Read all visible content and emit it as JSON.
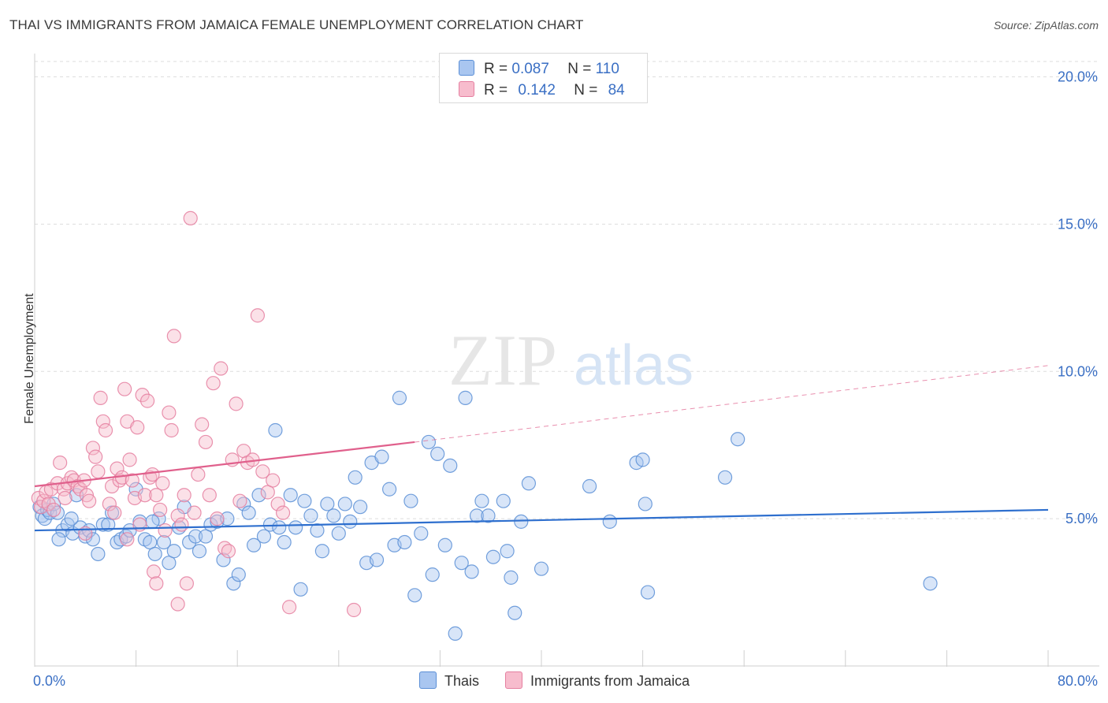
{
  "title": "THAI VS IMMIGRANTS FROM JAMAICA FEMALE UNEMPLOYMENT CORRELATION CHART",
  "source": "Source: ZipAtlas.com",
  "watermark": {
    "zip": "ZIP",
    "atlas": "atlas"
  },
  "legend": {
    "rows": [
      {
        "r_label": "R =",
        "r_value": "0.087",
        "n_label": "N =",
        "n_value": "110"
      },
      {
        "r_label": "R =",
        "r_value": "0.142",
        "n_label": "N =",
        "n_value": "84"
      }
    ]
  },
  "bottom_legend": [
    "Thais",
    "Immigrants from Jamaica"
  ],
  "colors": {
    "thais_fill": "#a9c6f0",
    "thais_stroke": "#5b8fd6",
    "thais_line": "#2e6fce",
    "jamaica_fill": "#f7bccd",
    "jamaica_stroke": "#e57fa0",
    "jamaica_line": "#e0608c",
    "axis_label": "#3a6fc4",
    "grid": "#dddddd"
  },
  "chart_data": {
    "type": "scatter",
    "title": "THAI VS IMMIGRANTS FROM JAMAICA FEMALE UNEMPLOYMENT CORRELATION CHART",
    "xlabel": "",
    "ylabel": "Female Unemployment",
    "xlim": [
      0,
      80
    ],
    "ylim": [
      0,
      20
    ],
    "x_ticks": [
      "0.0%",
      "80.0%"
    ],
    "y_ticks": [
      "5.0%",
      "10.0%",
      "15.0%",
      "20.0%"
    ],
    "y_tick_values": [
      5,
      10,
      15,
      20
    ],
    "grid": true,
    "series": [
      {
        "name": "Thais",
        "r": 0.087,
        "n": 110,
        "trend": {
          "x": [
            0,
            80
          ],
          "y": [
            4.6,
            5.3
          ],
          "dashed_x_start": null
        },
        "points": [
          [
            0.4,
            5.4
          ],
          [
            0.6,
            5.1
          ],
          [
            0.8,
            5.0
          ],
          [
            1.0,
            5.3
          ],
          [
            1.2,
            5.2
          ],
          [
            1.5,
            5.5
          ],
          [
            1.8,
            5.2
          ],
          [
            2.2,
            4.6
          ],
          [
            2.6,
            4.8
          ],
          [
            3.0,
            4.5
          ],
          [
            3.3,
            5.8
          ],
          [
            3.6,
            4.7
          ],
          [
            4.0,
            4.4
          ],
          [
            4.3,
            4.6
          ],
          [
            4.6,
            4.3
          ],
          [
            5.0,
            3.8
          ],
          [
            5.4,
            4.8
          ],
          [
            5.8,
            4.8
          ],
          [
            6.1,
            5.2
          ],
          [
            6.5,
            4.2
          ],
          [
            6.8,
            4.3
          ],
          [
            7.2,
            4.4
          ],
          [
            7.5,
            4.6
          ],
          [
            8.0,
            6.0
          ],
          [
            8.3,
            4.9
          ],
          [
            8.7,
            4.3
          ],
          [
            9.1,
            4.2
          ],
          [
            9.5,
            3.8
          ],
          [
            9.8,
            5.0
          ],
          [
            10.2,
            4.2
          ],
          [
            10.6,
            3.5
          ],
          [
            11.0,
            3.9
          ],
          [
            11.4,
            4.7
          ],
          [
            11.8,
            5.4
          ],
          [
            12.2,
            4.2
          ],
          [
            12.7,
            4.4
          ],
          [
            13.0,
            3.9
          ],
          [
            13.5,
            4.4
          ],
          [
            13.9,
            4.8
          ],
          [
            14.4,
            4.9
          ],
          [
            14.9,
            3.6
          ],
          [
            15.2,
            5.0
          ],
          [
            15.7,
            2.8
          ],
          [
            16.1,
            3.1
          ],
          [
            16.5,
            5.5
          ],
          [
            16.9,
            5.2
          ],
          [
            17.3,
            4.1
          ],
          [
            17.7,
            5.8
          ],
          [
            18.1,
            4.4
          ],
          [
            18.6,
            4.8
          ],
          [
            19.0,
            8.0
          ],
          [
            19.3,
            4.7
          ],
          [
            19.7,
            4.2
          ],
          [
            20.2,
            5.8
          ],
          [
            20.6,
            4.7
          ],
          [
            21.0,
            2.6
          ],
          [
            21.3,
            5.6
          ],
          [
            21.8,
            5.1
          ],
          [
            22.3,
            4.6
          ],
          [
            22.7,
            3.9
          ],
          [
            23.1,
            5.5
          ],
          [
            23.6,
            5.1
          ],
          [
            24.0,
            4.5
          ],
          [
            24.5,
            5.5
          ],
          [
            24.9,
            4.9
          ],
          [
            25.3,
            6.4
          ],
          [
            25.7,
            5.4
          ],
          [
            26.2,
            3.5
          ],
          [
            26.6,
            6.9
          ],
          [
            27.0,
            3.6
          ],
          [
            27.4,
            7.1
          ],
          [
            28.0,
            6.0
          ],
          [
            28.4,
            4.1
          ],
          [
            28.8,
            9.1
          ],
          [
            29.2,
            4.2
          ],
          [
            29.7,
            5.6
          ],
          [
            30.0,
            2.4
          ],
          [
            30.5,
            4.5
          ],
          [
            31.1,
            7.6
          ],
          [
            31.4,
            3.1
          ],
          [
            31.8,
            7.2
          ],
          [
            32.4,
            4.1
          ],
          [
            32.8,
            6.8
          ],
          [
            33.2,
            1.1
          ],
          [
            33.7,
            3.5
          ],
          [
            34.0,
            9.1
          ],
          [
            34.5,
            3.2
          ],
          [
            34.9,
            5.1
          ],
          [
            35.3,
            5.6
          ],
          [
            35.8,
            5.1
          ],
          [
            36.2,
            3.7
          ],
          [
            37.0,
            5.6
          ],
          [
            37.3,
            3.9
          ],
          [
            37.6,
            3.0
          ],
          [
            37.9,
            1.8
          ],
          [
            38.4,
            4.9
          ],
          [
            39.0,
            6.2
          ],
          [
            40.0,
            3.3
          ],
          [
            43.8,
            6.1
          ],
          [
            45.4,
            4.9
          ],
          [
            47.5,
            6.9
          ],
          [
            48.0,
            7.0
          ],
          [
            48.2,
            5.5
          ],
          [
            48.4,
            2.5
          ],
          [
            54.5,
            6.4
          ],
          [
            55.5,
            7.7
          ],
          [
            70.7,
            2.8
          ],
          [
            1.9,
            4.3
          ],
          [
            2.9,
            5.0
          ],
          [
            9.3,
            4.9
          ]
        ]
      },
      {
        "name": "Immigrants from Jamaica",
        "r": 0.142,
        "n": 84,
        "trend": {
          "x": [
            0,
            30,
            80
          ],
          "y": [
            6.1,
            7.6,
            10.2
          ],
          "dashed_x_start": 30
        },
        "points": [
          [
            0.3,
            5.7
          ],
          [
            0.5,
            5.4
          ],
          [
            0.7,
            5.6
          ],
          [
            0.9,
            5.9
          ],
          [
            1.1,
            5.5
          ],
          [
            1.3,
            6.0
          ],
          [
            1.5,
            5.3
          ],
          [
            1.8,
            6.2
          ],
          [
            2.0,
            6.9
          ],
          [
            2.3,
            6.0
          ],
          [
            2.6,
            6.2
          ],
          [
            2.9,
            6.4
          ],
          [
            3.1,
            6.3
          ],
          [
            3.4,
            6.1
          ],
          [
            3.6,
            6.0
          ],
          [
            3.9,
            6.3
          ],
          [
            4.1,
            5.8
          ],
          [
            4.3,
            5.6
          ],
          [
            4.6,
            7.4
          ],
          [
            4.8,
            7.1
          ],
          [
            5.0,
            6.6
          ],
          [
            5.2,
            9.1
          ],
          [
            5.4,
            8.3
          ],
          [
            5.6,
            8.0
          ],
          [
            5.9,
            5.5
          ],
          [
            6.1,
            6.1
          ],
          [
            6.3,
            5.2
          ],
          [
            6.5,
            6.7
          ],
          [
            6.7,
            6.3
          ],
          [
            6.9,
            6.4
          ],
          [
            7.1,
            9.4
          ],
          [
            7.3,
            8.3
          ],
          [
            7.5,
            7.0
          ],
          [
            7.7,
            6.3
          ],
          [
            7.9,
            5.7
          ],
          [
            8.1,
            8.1
          ],
          [
            8.3,
            4.8
          ],
          [
            8.5,
            9.2
          ],
          [
            8.7,
            5.8
          ],
          [
            8.9,
            9.0
          ],
          [
            9.1,
            6.4
          ],
          [
            9.3,
            6.5
          ],
          [
            9.6,
            5.8
          ],
          [
            9.9,
            5.3
          ],
          [
            10.1,
            6.2
          ],
          [
            10.3,
            4.6
          ],
          [
            10.6,
            8.6
          ],
          [
            10.8,
            8.0
          ],
          [
            11.0,
            11.2
          ],
          [
            11.3,
            5.1
          ],
          [
            11.6,
            4.8
          ],
          [
            11.8,
            5.8
          ],
          [
            12.0,
            2.8
          ],
          [
            12.3,
            15.2
          ],
          [
            12.6,
            5.2
          ],
          [
            12.9,
            6.5
          ],
          [
            13.2,
            8.2
          ],
          [
            13.5,
            7.6
          ],
          [
            13.8,
            5.8
          ],
          [
            14.1,
            9.6
          ],
          [
            14.4,
            5.0
          ],
          [
            14.7,
            10.1
          ],
          [
            15.0,
            4.0
          ],
          [
            15.3,
            3.9
          ],
          [
            15.6,
            7.0
          ],
          [
            15.9,
            8.9
          ],
          [
            16.2,
            5.6
          ],
          [
            16.5,
            7.3
          ],
          [
            16.8,
            6.9
          ],
          [
            17.2,
            7.0
          ],
          [
            17.6,
            11.9
          ],
          [
            18.0,
            6.6
          ],
          [
            18.4,
            5.9
          ],
          [
            18.8,
            6.3
          ],
          [
            19.2,
            5.5
          ],
          [
            19.6,
            5.2
          ],
          [
            20.1,
            2.0
          ],
          [
            9.4,
            3.2
          ],
          [
            9.6,
            2.8
          ],
          [
            11.3,
            2.1
          ],
          [
            25.2,
            1.9
          ],
          [
            2.4,
            5.7
          ],
          [
            4.0,
            4.5
          ],
          [
            7.3,
            4.3
          ]
        ]
      }
    ]
  }
}
